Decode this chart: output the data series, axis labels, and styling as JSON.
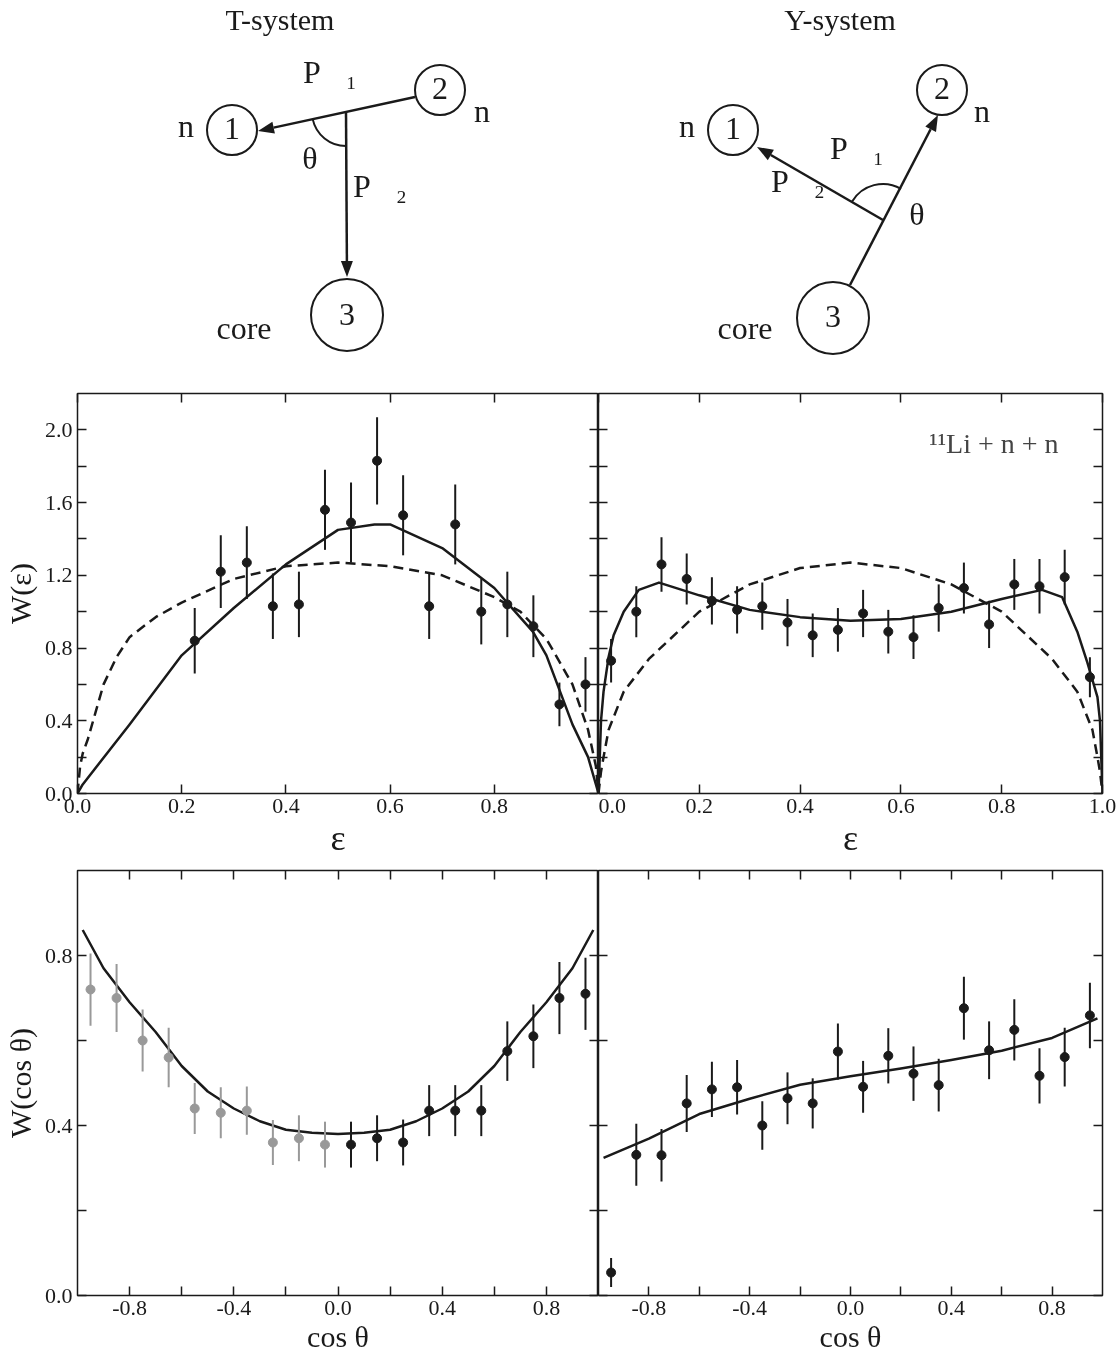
{
  "chart_data": [
    {
      "type": "other",
      "title": "T-system",
      "annotations": [
        "n",
        "1",
        "2",
        "n",
        "P⃗₁",
        "θ",
        "P⃗₂",
        "core",
        "3"
      ]
    },
    {
      "type": "other",
      "title": "Y-system",
      "annotations": [
        "n",
        "1",
        "2",
        "n",
        "P⃗₂",
        "θ",
        "P⃗₁",
        "core",
        "3"
      ]
    },
    {
      "type": "scatter",
      "xlabel": "ε",
      "ylabel": "W(ε)",
      "xlim": [
        0,
        1
      ],
      "ylim": [
        0,
        2.2
      ],
      "xticks": [
        {
          "value": 0,
          "label": "0.0"
        },
        0.2,
        0.4,
        0.6,
        0.8,
        {
          "value": 1.0,
          "label": null
        }
      ],
      "yticks": [
        {
          "value": 0,
          "label": "0.0"
        },
        {
          "value": 0.2,
          "label": null
        },
        0.4,
        {
          "value": 0.6,
          "label": null
        },
        0.8,
        {
          "value": 1.0,
          "label": null
        },
        1.2,
        {
          "value": 1.4,
          "label": null
        },
        1.6,
        {
          "value": 1.8,
          "label": null
        },
        {
          "value": 2,
          "label": "2.0"
        }
      ],
      "series": [
        {
          "type": "line",
          "color": "#1a1a1a",
          "line_style": "solid",
          "x": [
            0,
            0.01,
            0.1,
            0.2,
            0.3,
            0.4,
            0.5,
            0.57,
            0.6,
            0.7,
            0.8,
            0.874,
            0.9,
            0.95,
            0.98,
            1.0
          ],
          "values": [
            0,
            0.05,
            0.38,
            0.76,
            1.02,
            1.26,
            1.45,
            1.48,
            1.48,
            1.35,
            1.13,
            0.89,
            0.76,
            0.38,
            0.2,
            0
          ]
        },
        {
          "type": "line",
          "color": "#1a1a1a",
          "line_style": "dashed",
          "x": [
            0,
            0.005,
            0.01,
            0.02,
            0.035,
            0.05,
            0.075,
            0.1,
            0.15,
            0.2,
            0.3,
            0.4,
            0.5,
            0.6,
            0.7,
            0.8,
            0.85,
            0.9,
            0.95,
            0.98,
            0.995,
            1.0
          ],
          "values": [
            0,
            0.15,
            0.22,
            0.3,
            0.45,
            0.6,
            0.75,
            0.86,
            0.97,
            1.05,
            1.18,
            1.25,
            1.27,
            1.25,
            1.2,
            1.08,
            1.0,
            0.85,
            0.6,
            0.35,
            0.15,
            0
          ]
        },
        {
          "type": "scatter",
          "marker": "circle",
          "color": "#1a1a1a",
          "x": [
            0.225,
            0.275,
            0.325,
            0.375,
            0.425,
            0.475,
            0.525,
            0.575,
            0.625,
            0.675,
            0.725,
            0.775,
            0.825,
            0.875,
            0.925,
            0.975
          ],
          "values": [
            0.84,
            1.22,
            1.27,
            1.03,
            1.04,
            1.56,
            1.49,
            1.83,
            1.53,
            1.03,
            1.48,
            1.0,
            1.04,
            0.92,
            0.49,
            0.6
          ],
          "errors": [
            0.18,
            0.2,
            0.2,
            0.18,
            0.18,
            0.22,
            0.22,
            0.24,
            0.22,
            0.18,
            0.22,
            0.18,
            0.18,
            0.17,
            0.12,
            0.15
          ]
        }
      ]
    },
    {
      "type": "scatter",
      "xlabel": "ε",
      "tick_labels": "x",
      "xlim": [
        0,
        1
      ],
      "ylim": [
        0,
        2.2
      ],
      "annotations": [
        "¹¹Li + n + n"
      ],
      "xticks": [
        {
          "value": 0,
          "label": "0.0"
        },
        0.2,
        0.4,
        0.6,
        0.8,
        {
          "value": 1,
          "label": "1.0"
        }
      ],
      "yticks": [
        0,
        0.2,
        0.4,
        0.6,
        0.8,
        1.0,
        1.2,
        1.4,
        1.6,
        1.8,
        2.0
      ],
      "series": [
        {
          "type": "line",
          "color": "#1a1a1a",
          "line_style": "solid",
          "x": [
            0,
            0.005,
            0.01,
            0.02,
            0.03,
            0.05,
            0.08,
            0.12,
            0.2,
            0.3,
            0.4,
            0.5,
            0.6,
            0.7,
            0.8,
            0.88,
            0.92,
            0.95,
            0.97,
            0.99,
            0.995,
            1.0
          ],
          "values": [
            0,
            0.4,
            0.56,
            0.75,
            0.87,
            1.0,
            1.12,
            1.16,
            1.09,
            1.01,
            0.97,
            0.95,
            0.96,
            1.0,
            1.07,
            1.12,
            1.08,
            0.89,
            0.72,
            0.53,
            0.4,
            0
          ]
        },
        {
          "type": "line",
          "color": "#1a1a1a",
          "line_style": "dashed",
          "x": [
            0,
            0.005,
            0.01,
            0.02,
            0.05,
            0.1,
            0.2,
            0.3,
            0.4,
            0.5,
            0.6,
            0.7,
            0.8,
            0.9,
            0.95,
            0.98,
            0.99,
            0.995,
            1.0
          ],
          "values": [
            0,
            0.12,
            0.2,
            0.35,
            0.56,
            0.74,
            1.0,
            1.15,
            1.24,
            1.27,
            1.24,
            1.15,
            1.0,
            0.74,
            0.56,
            0.35,
            0.2,
            0.12,
            0
          ]
        },
        {
          "type": "scatter",
          "marker": "circle",
          "color": "#1a1a1a",
          "x": [
            0.025,
            0.075,
            0.125,
            0.175,
            0.225,
            0.275,
            0.325,
            0.375,
            0.425,
            0.475,
            0.525,
            0.575,
            0.625,
            0.675,
            0.725,
            0.775,
            0.825,
            0.875,
            0.925,
            0.975
          ],
          "values": [
            0.73,
            1.0,
            1.26,
            1.18,
            1.06,
            1.01,
            1.03,
            0.94,
            0.87,
            0.9,
            0.99,
            0.89,
            0.86,
            1.02,
            1.13,
            0.93,
            1.15,
            1.14,
            1.19,
            0.64
          ],
          "errors": [
            0.12,
            0.14,
            0.15,
            0.14,
            0.13,
            0.13,
            0.13,
            0.13,
            0.12,
            0.12,
            0.13,
            0.12,
            0.12,
            0.13,
            0.14,
            0.13,
            0.14,
            0.15,
            0.15,
            0.11
          ]
        }
      ]
    },
    {
      "type": "scatter",
      "xlabel": "cos θ",
      "ylabel": "W(cos θ)",
      "xlim": [
        -1,
        1
      ],
      "ylim": [
        0,
        1
      ],
      "xticks": [
        -0.8,
        {
          "value": -0.6,
          "label": null
        },
        -0.4,
        {
          "value": -0.2,
          "label": null
        },
        {
          "value": 0,
          "label": "0.0"
        },
        {
          "value": 0.2,
          "label": null
        },
        0.4,
        {
          "value": 0.6,
          "label": null
        },
        0.8
      ],
      "yticks": [
        {
          "value": 0,
          "label": "0.0"
        },
        {
          "value": 0.2,
          "label": null
        },
        0.4,
        {
          "value": 0.6,
          "label": null
        },
        0.8
      ],
      "series": [
        {
          "type": "line",
          "color": "#1a1a1a",
          "line_style": "solid",
          "x": [
            -0.98,
            -0.9,
            -0.8,
            -0.7,
            -0.6,
            -0.5,
            -0.4,
            -0.3,
            -0.2,
            -0.1,
            0,
            0.1,
            0.2,
            0.3,
            0.4,
            0.5,
            0.6,
            0.7,
            0.8,
            0.9,
            0.98
          ],
          "values": [
            0.86,
            0.77,
            0.69,
            0.62,
            0.54,
            0.48,
            0.44,
            0.41,
            0.39,
            0.383,
            0.38,
            0.383,
            0.39,
            0.41,
            0.44,
            0.48,
            0.54,
            0.62,
            0.69,
            0.77,
            0.86
          ]
        },
        {
          "type": "scatter",
          "marker": "circle",
          "color": "#999999",
          "x": [
            -0.95,
            -0.85,
            -0.75,
            -0.65,
            -0.55,
            -0.45,
            -0.35,
            -0.25,
            -0.15,
            -0.05
          ],
          "values": [
            0.72,
            0.7,
            0.6,
            0.56,
            0.44,
            0.43,
            0.435,
            0.36,
            0.37,
            0.355
          ],
          "errors": [
            0.085,
            0.08,
            0.073,
            0.07,
            0.06,
            0.06,
            0.057,
            0.053,
            0.054,
            0.054
          ]
        },
        {
          "type": "scatter",
          "marker": "circle",
          "color": "#1a1a1a",
          "x": [
            0.05,
            0.15,
            0.25,
            0.35,
            0.45,
            0.55,
            0.65,
            0.75,
            0.85,
            0.95
          ],
          "values": [
            0.355,
            0.37,
            0.36,
            0.435,
            0.435,
            0.435,
            0.575,
            0.61,
            0.7,
            0.71
          ],
          "errors": [
            0.054,
            0.054,
            0.054,
            0.06,
            0.06,
            0.06,
            0.07,
            0.075,
            0.085,
            0.085
          ]
        }
      ]
    },
    {
      "type": "scatter",
      "xlabel": "cos θ",
      "tick_labels": "x",
      "xlim": [
        -1,
        1
      ],
      "ylim": [
        0,
        1
      ],
      "xticks": [
        -0.8,
        {
          "value": -0.6,
          "label": null
        },
        -0.4,
        {
          "value": -0.2,
          "label": null
        },
        {
          "value": 0,
          "label": "0.0"
        },
        {
          "value": 0.2,
          "label": null
        },
        0.4,
        {
          "value": 0.6,
          "label": null
        },
        0.8
      ],
      "yticks": [
        0,
        0.2,
        0.4,
        0.6,
        0.8
      ],
      "series": [
        {
          "type": "line",
          "color": "#1a1a1a",
          "line_style": "solid",
          "x": [
            -0.98,
            -0.8,
            -0.6,
            -0.4,
            -0.2,
            0,
            0.2,
            0.4,
            0.6,
            0.8,
            0.98
          ],
          "values": [
            0.324,
            0.369,
            0.427,
            0.463,
            0.496,
            0.516,
            0.534,
            0.554,
            0.576,
            0.606,
            0.652
          ]
        },
        {
          "type": "scatter",
          "marker": "circle",
          "color": "#1a1a1a",
          "x": [
            -0.95,
            -0.85,
            -0.75,
            -0.65,
            -0.55,
            -0.45,
            -0.35,
            -0.25,
            -0.15,
            -0.05,
            0.05,
            0.15,
            0.25,
            0.35,
            0.45,
            0.55,
            0.65,
            0.75,
            0.85,
            0.95
          ],
          "values": [
            0.054,
            0.331,
            0.33,
            0.452,
            0.485,
            0.49,
            0.4,
            0.464,
            0.452,
            0.574,
            0.491,
            0.564,
            0.522,
            0.495,
            0.676,
            0.577,
            0.625,
            0.517,
            0.561,
            0.659
          ],
          "errors": [
            0.034,
            0.073,
            0.062,
            0.067,
            0.065,
            0.064,
            0.057,
            0.061,
            0.059,
            0.066,
            0.061,
            0.065,
            0.064,
            0.062,
            0.074,
            0.068,
            0.072,
            0.065,
            0.069,
            0.077
          ]
        }
      ]
    }
  ]
}
